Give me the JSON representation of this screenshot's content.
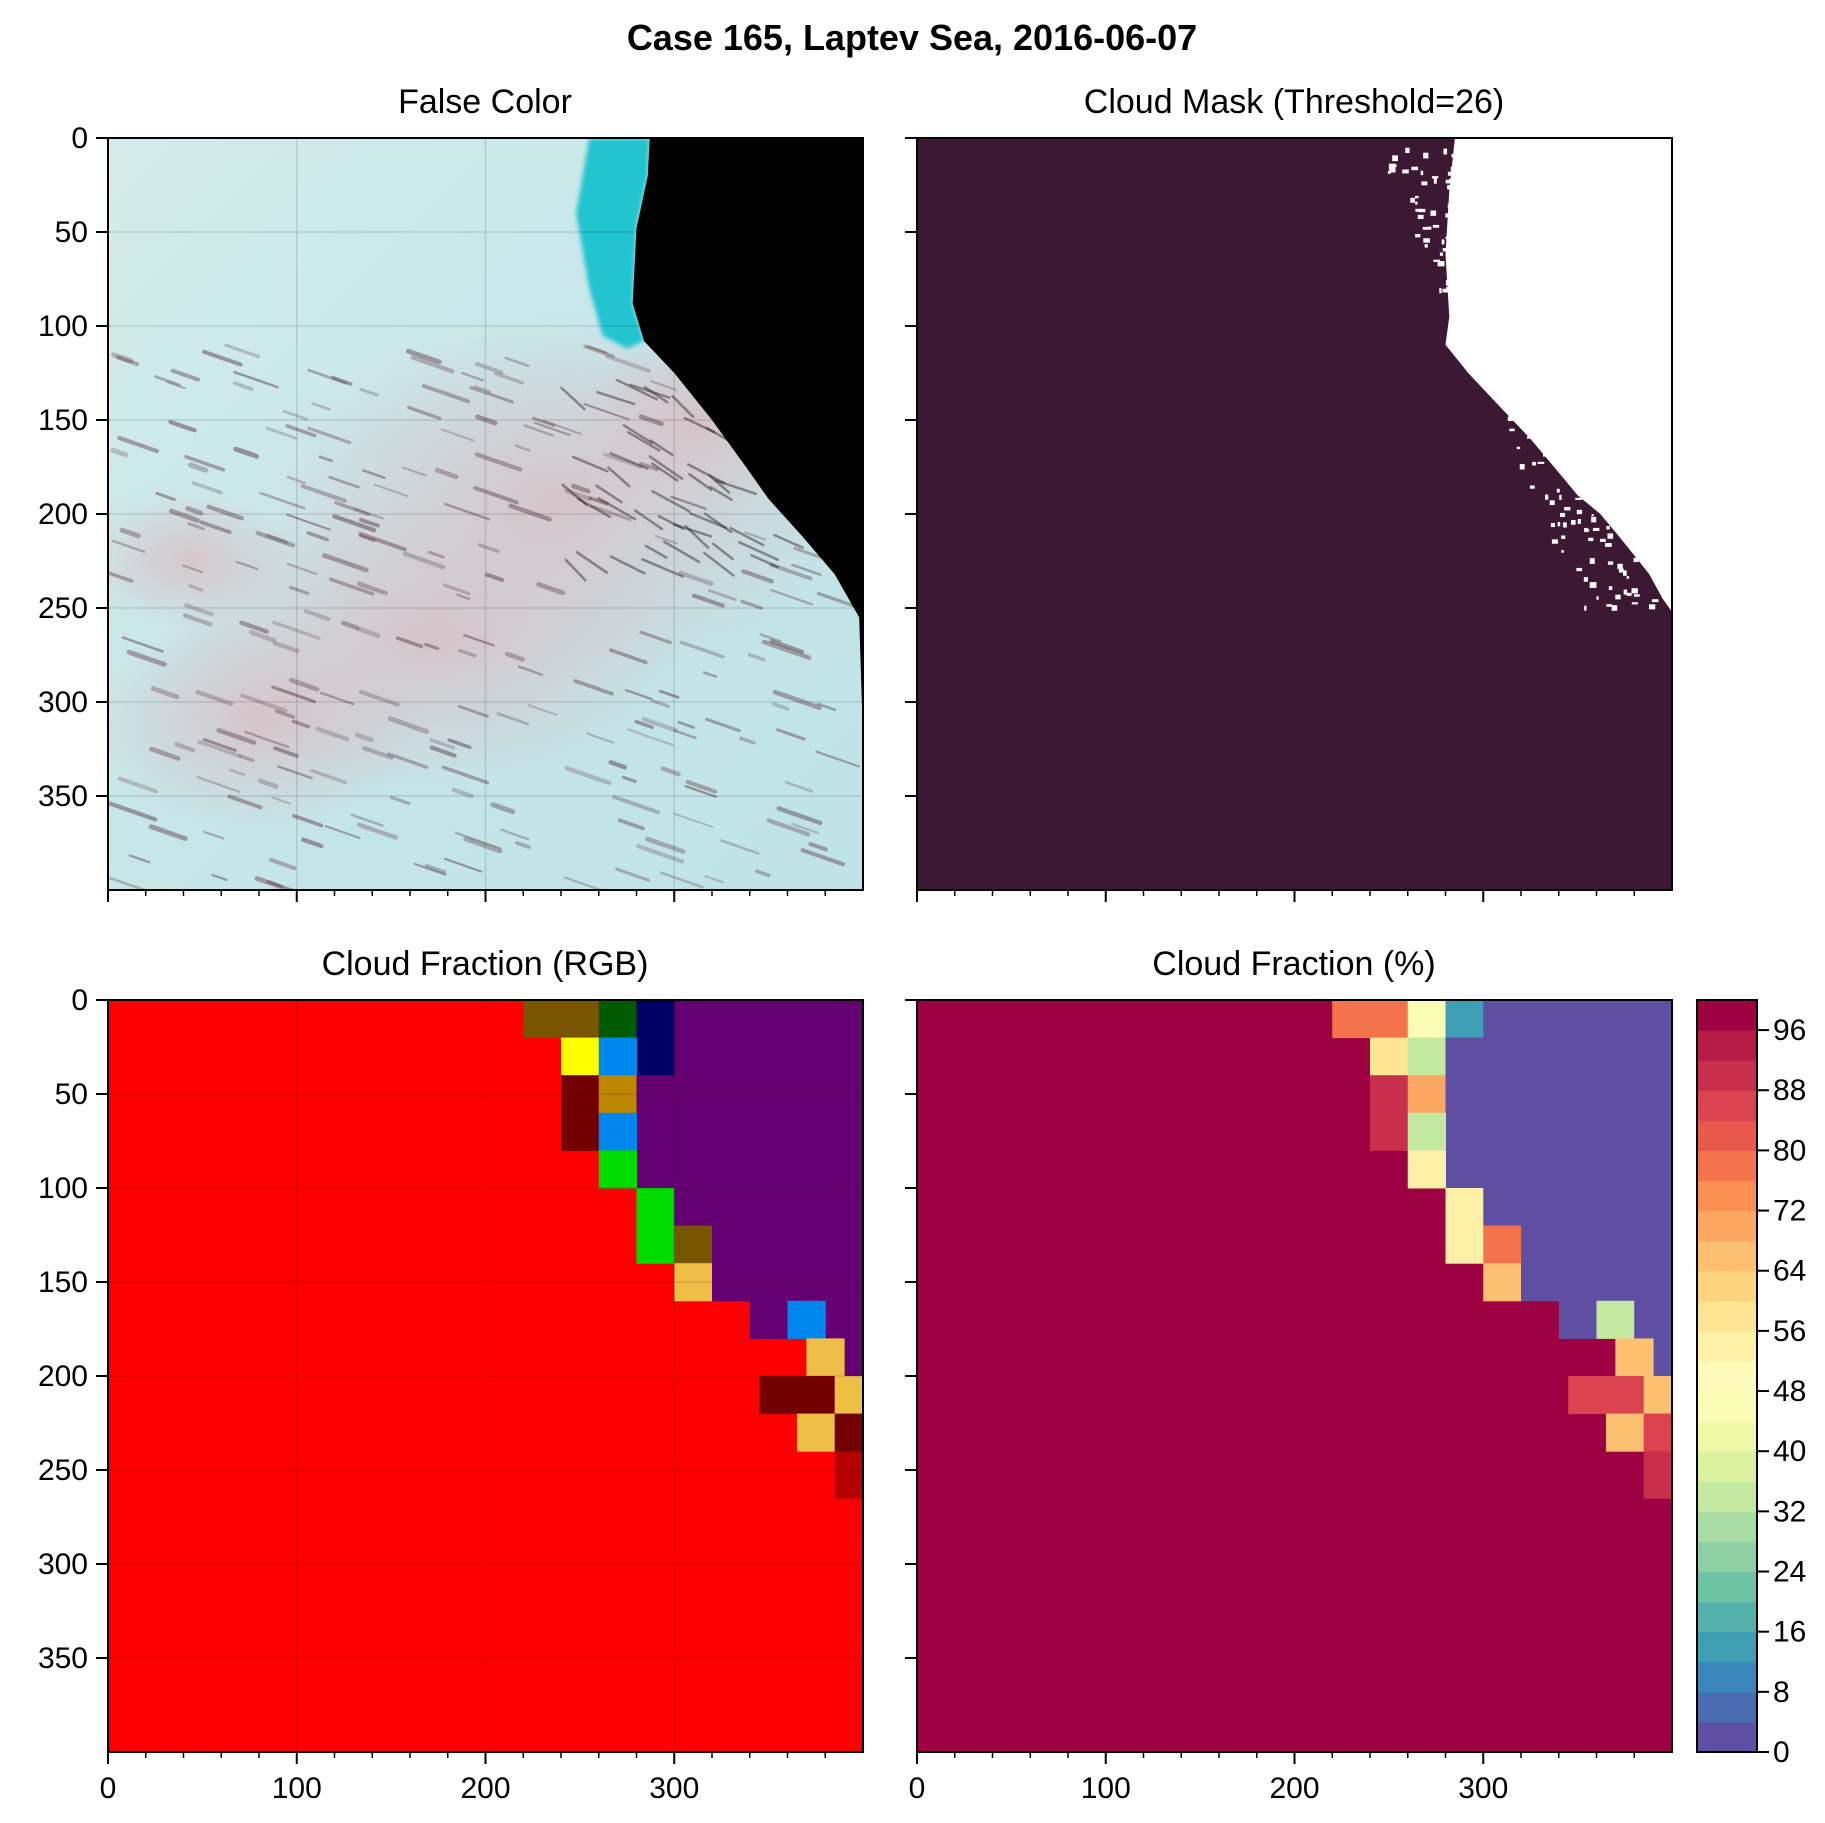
{
  "figure": {
    "title": "Case 165, Laptev Sea, 2016-06-07"
  },
  "panels": [
    {
      "key": "false_color",
      "title": "False Color"
    },
    {
      "key": "cloud_mask",
      "title": "Cloud Mask (Threshold=26)"
    },
    {
      "key": "cloud_fraction_rgb",
      "title": "Cloud Fraction (RGB)"
    },
    {
      "key": "cloud_fraction_pct",
      "title": "Cloud Fraction (%)"
    }
  ],
  "colors": {
    "mask_cloud": "#3d1832",
    "mask_clear": "#ffffff",
    "rgb_background": "#ff0000",
    "rgb_clear": "#650072",
    "pct_high": "#9e0142",
    "pct_low": "#5e4fa2",
    "false_color_cloud": "#c3e4e6",
    "false_color_ice": "#20c4d0",
    "false_color_water": "#000000"
  },
  "chart_data": [
    {
      "type": "heatmap",
      "panel": "false_color",
      "title": "False Color",
      "xlim": [
        0,
        400
      ],
      "ylim": [
        400,
        0
      ],
      "xticks": [
        0,
        100,
        200,
        300
      ],
      "yticks": [
        0,
        50,
        100,
        150,
        200,
        250,
        300,
        350
      ],
      "grid": true,
      "regions": [
        {
          "name": "open water",
          "color": "#000000",
          "boundary": [
            [
              287,
              0
            ],
            [
              400,
              0
            ],
            [
              400,
              320
            ],
            [
              398,
              255
            ],
            [
              385,
              232
            ],
            [
              368,
              212
            ],
            [
              350,
              192
            ],
            [
              338,
              175
            ],
            [
              320,
              150
            ],
            [
              300,
              125
            ],
            [
              284,
              108
            ],
            [
              278,
              88
            ],
            [
              280,
              48
            ],
            [
              286,
              20
            ]
          ]
        },
        {
          "name": "sea ice edge",
          "color": "#20c4d0",
          "boundary": [
            [
              255,
              0
            ],
            [
              287,
              0
            ],
            [
              286,
              20
            ],
            [
              280,
              48
            ],
            [
              278,
              88
            ],
            [
              284,
              108
            ],
            [
              275,
              112
            ],
            [
              262,
              105
            ],
            [
              255,
              80
            ],
            [
              248,
              40
            ]
          ]
        }
      ]
    },
    {
      "type": "heatmap",
      "panel": "cloud_mask",
      "title": "Cloud Mask (Threshold=26)",
      "xlim": [
        0,
        400
      ],
      "ylim": [
        400,
        0
      ],
      "xticks": [
        0,
        100,
        200,
        300
      ],
      "yticks": [
        0,
        50,
        100,
        150,
        200,
        250,
        300,
        350
      ],
      "grid": false,
      "classes": [
        "cloud",
        "clear"
      ],
      "clear_region": [
        [
          285,
          0
        ],
        [
          400,
          0
        ],
        [
          400,
          252
        ],
        [
          395,
          245
        ],
        [
          388,
          232
        ],
        [
          380,
          222
        ],
        [
          372,
          212
        ],
        [
          362,
          200
        ],
        [
          350,
          190
        ],
        [
          340,
          178
        ],
        [
          325,
          160
        ],
        [
          308,
          142
        ],
        [
          292,
          125
        ],
        [
          280,
          110
        ],
        [
          282,
          95
        ],
        [
          280,
          62
        ],
        [
          282,
          28
        ]
      ]
    },
    {
      "type": "heatmap",
      "panel": "cloud_fraction_rgb",
      "title": "Cloud Fraction (RGB)",
      "xlim": [
        0,
        400
      ],
      "ylim": [
        400,
        0
      ],
      "xticks": [
        0,
        100,
        200,
        300
      ],
      "yticks": [
        0,
        50,
        100,
        150,
        200,
        250,
        300,
        350
      ],
      "grid": true,
      "cell_size": 20,
      "background": "#ff0000",
      "cells": [
        {
          "x": 220,
          "y": 0,
          "w": 40,
          "h": 20,
          "color": "#7a5500"
        },
        {
          "x": 260,
          "y": 0,
          "w": 20,
          "h": 20,
          "color": "#005a00"
        },
        {
          "x": 280,
          "y": 0,
          "w": 20,
          "h": 40,
          "color": "#000064"
        },
        {
          "x": 300,
          "y": 0,
          "w": 100,
          "h": 40,
          "color": "#650072"
        },
        {
          "x": 240,
          "y": 20,
          "w": 20,
          "h": 20,
          "color": "#ffff00"
        },
        {
          "x": 260,
          "y": 20,
          "w": 20,
          "h": 20,
          "color": "#0087ee"
        },
        {
          "x": 240,
          "y": 40,
          "w": 20,
          "h": 40,
          "color": "#720000"
        },
        {
          "x": 260,
          "y": 40,
          "w": 20,
          "h": 20,
          "color": "#be8700"
        },
        {
          "x": 280,
          "y": 40,
          "w": 120,
          "h": 60,
          "color": "#650072"
        },
        {
          "x": 260,
          "y": 60,
          "w": 20,
          "h": 20,
          "color": "#0087ee"
        },
        {
          "x": 260,
          "y": 80,
          "w": 20,
          "h": 20,
          "color": "#00dc00"
        },
        {
          "x": 280,
          "y": 100,
          "w": 20,
          "h": 40,
          "color": "#00dc00"
        },
        {
          "x": 300,
          "y": 100,
          "w": 100,
          "h": 20,
          "color": "#650072"
        },
        {
          "x": 300,
          "y": 120,
          "w": 20,
          "h": 20,
          "color": "#7a5500"
        },
        {
          "x": 320,
          "y": 120,
          "w": 80,
          "h": 20,
          "color": "#650072"
        },
        {
          "x": 300,
          "y": 140,
          "w": 20,
          "h": 20,
          "color": "#eebe46"
        },
        {
          "x": 320,
          "y": 140,
          "w": 80,
          "h": 20,
          "color": "#650072"
        },
        {
          "x": 340,
          "y": 160,
          "w": 20,
          "h": 20,
          "color": "#650072"
        },
        {
          "x": 380,
          "y": 160,
          "w": 20,
          "h": 40,
          "color": "#650072"
        },
        {
          "x": 360,
          "y": 160,
          "w": 20,
          "h": 20,
          "color": "#0087ee"
        },
        {
          "x": 370,
          "y": 180,
          "w": 20,
          "h": 20,
          "color": "#eebe46"
        },
        {
          "x": 345,
          "y": 200,
          "w": 40,
          "h": 20,
          "color": "#720000"
        },
        {
          "x": 385,
          "y": 200,
          "w": 15,
          "h": 20,
          "color": "#eebe46"
        },
        {
          "x": 365,
          "y": 220,
          "w": 20,
          "h": 20,
          "color": "#eebe46"
        },
        {
          "x": 385,
          "y": 220,
          "w": 15,
          "h": 20,
          "color": "#720000"
        },
        {
          "x": 385,
          "y": 240,
          "w": 15,
          "h": 25,
          "color": "#b40000"
        }
      ]
    },
    {
      "type": "heatmap",
      "panel": "cloud_fraction_pct",
      "title": "Cloud Fraction (%)",
      "xlim": [
        0,
        400
      ],
      "ylim": [
        400,
        0
      ],
      "xticks": [
        0,
        100,
        200,
        300
      ],
      "yticks": [
        0,
        50,
        100,
        150,
        200,
        250,
        300,
        350
      ],
      "grid": false,
      "cell_size": 20,
      "background_value": 100,
      "cells": [
        {
          "x": 220,
          "y": 0,
          "w": 40,
          "h": 20,
          "value": 77
        },
        {
          "x": 260,
          "y": 0,
          "w": 20,
          "h": 20,
          "value": 44
        },
        {
          "x": 280,
          "y": 0,
          "w": 20,
          "h": 20,
          "value": 15
        },
        {
          "x": 300,
          "y": 0,
          "w": 100,
          "h": 20,
          "value": 2
        },
        {
          "x": 240,
          "y": 20,
          "w": 20,
          "h": 20,
          "value": 58
        },
        {
          "x": 260,
          "y": 20,
          "w": 20,
          "h": 20,
          "value": 35
        },
        {
          "x": 280,
          "y": 20,
          "w": 120,
          "h": 20,
          "value": 2
        },
        {
          "x": 240,
          "y": 40,
          "w": 20,
          "h": 40,
          "value": 88
        },
        {
          "x": 260,
          "y": 40,
          "w": 20,
          "h": 20,
          "value": 70
        },
        {
          "x": 280,
          "y": 40,
          "w": 120,
          "h": 60,
          "value": 2
        },
        {
          "x": 260,
          "y": 60,
          "w": 20,
          "h": 20,
          "value": 34
        },
        {
          "x": 260,
          "y": 80,
          "w": 20,
          "h": 20,
          "value": 54
        },
        {
          "x": 280,
          "y": 100,
          "w": 20,
          "h": 40,
          "value": 52
        },
        {
          "x": 300,
          "y": 100,
          "w": 100,
          "h": 20,
          "value": 2
        },
        {
          "x": 300,
          "y": 120,
          "w": 20,
          "h": 20,
          "value": 77
        },
        {
          "x": 320,
          "y": 120,
          "w": 80,
          "h": 20,
          "value": 2
        },
        {
          "x": 300,
          "y": 140,
          "w": 20,
          "h": 20,
          "value": 66
        },
        {
          "x": 320,
          "y": 140,
          "w": 80,
          "h": 20,
          "value": 2
        },
        {
          "x": 340,
          "y": 160,
          "w": 20,
          "h": 20,
          "value": 2
        },
        {
          "x": 360,
          "y": 160,
          "w": 20,
          "h": 20,
          "value": 34
        },
        {
          "x": 380,
          "y": 160,
          "w": 20,
          "h": 40,
          "value": 2
        },
        {
          "x": 370,
          "y": 180,
          "w": 20,
          "h": 20,
          "value": 66
        },
        {
          "x": 345,
          "y": 200,
          "w": 40,
          "h": 20,
          "value": 87
        },
        {
          "x": 385,
          "y": 200,
          "w": 15,
          "h": 20,
          "value": 66
        },
        {
          "x": 365,
          "y": 220,
          "w": 20,
          "h": 20,
          "value": 66
        },
        {
          "x": 385,
          "y": 220,
          "w": 15,
          "h": 20,
          "value": 87
        },
        {
          "x": 385,
          "y": 240,
          "w": 15,
          "h": 25,
          "value": 88
        }
      ],
      "colorbar": {
        "min": 0,
        "max": 100,
        "step": 4,
        "ticks": [
          0,
          8,
          16,
          24,
          32,
          40,
          48,
          56,
          64,
          72,
          80,
          88,
          96
        ],
        "colors": [
          "#5e4fa2",
          "#4a6cb0",
          "#3a86bb",
          "#3e9eb4",
          "#53b0ab",
          "#6fc3a5",
          "#8ed0a4",
          "#a9dda3",
          "#c3e8a0",
          "#dbf19f",
          "#eef8a5",
          "#fbfdb7",
          "#fffbba",
          "#fff0a7",
          "#fee594",
          "#fed57f",
          "#fdc070",
          "#fca862",
          "#f98f53",
          "#f3744c",
          "#e8594b",
          "#d9444f",
          "#c82f4b",
          "#b41c47",
          "#9e0142"
        ]
      }
    }
  ]
}
